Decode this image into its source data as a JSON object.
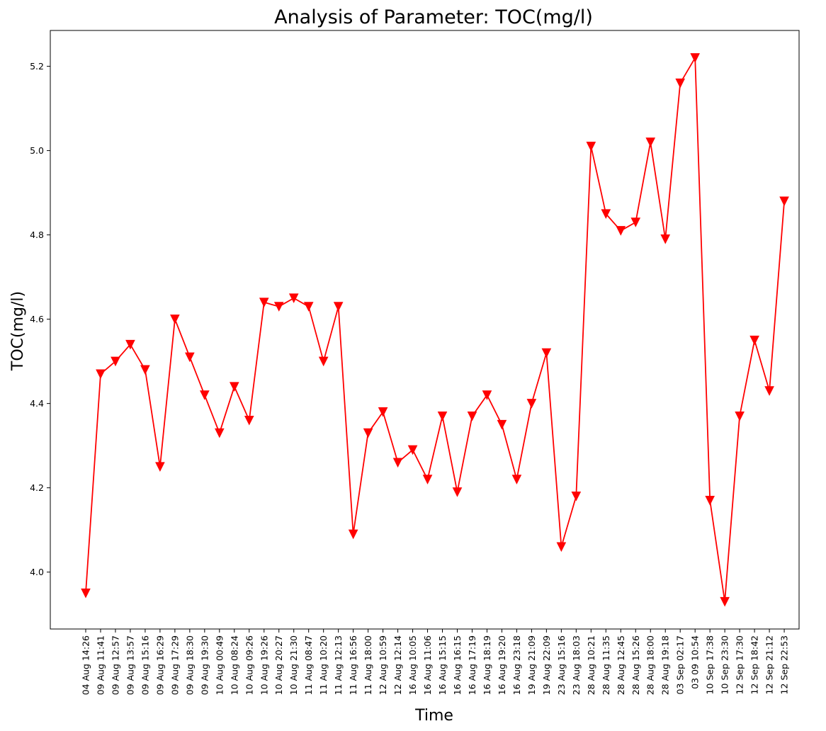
{
  "chart_data": {
    "type": "line",
    "title": "Analysis of Parameter: TOC(mg/l)",
    "xlabel": "Time",
    "ylabel": "TOC(mg/l)",
    "ylim": [
      3.865,
      5.285
    ],
    "yticks": [
      4.0,
      4.2,
      4.4,
      4.6,
      4.8,
      5.0,
      5.2
    ],
    "grid": false,
    "legend": "none",
    "categories": [
      "04 Aug 14:26",
      "09 Aug 11:41",
      "09 Aug 12:57",
      "09 Aug 13:57",
      "09 Aug 15:16",
      "09 Aug 16:29",
      "09 Aug 17:29",
      "09 Aug 18:30",
      "09 Aug 19:30",
      "10 Aug 00:49",
      "10 Aug 08:24",
      "10 Aug 09:26",
      "10 Aug 19:26",
      "10 Aug 20:27",
      "10 Aug 21:30",
      "11 Aug 08:47",
      "11 Aug 10:20",
      "11 Aug 12:13",
      "11 Aug 16:56",
      "11 Aug 18:00",
      "12 Aug 10:59",
      "12 Aug 12:14",
      "16 Aug 10:05",
      "16 Aug 11:06",
      "16 Aug 15:15",
      "16 Aug 16:15",
      "16 Aug 17:19",
      "16 Aug 18:19",
      "16 Aug 19:20",
      "16 Aug 23:18",
      "19 Aug 21:09",
      "19 Aug 22:09",
      "23 Aug 15:16",
      "23 Aug 18:03",
      "28 Aug 10:21",
      "28 Aug 11:35",
      "28 Aug 12:45",
      "28 Aug 15:26",
      "28 Aug 18:00",
      "28 Aug 19:18",
      "03 Sep 02:17",
      "03 09 10:54",
      "10 Sep 17:38",
      "10 Sep 23:30",
      "12 Sep 17:30",
      "12 Sep 18:42",
      "12 Sep 21:12",
      "12 Sep 22:53"
    ],
    "series": [
      {
        "color": "#ff0000",
        "marker": "triangle-down",
        "values": [
          3.95,
          4.47,
          4.5,
          4.54,
          4.48,
          4.25,
          4.6,
          4.51,
          4.42,
          4.33,
          4.44,
          4.36,
          4.64,
          4.63,
          4.65,
          4.63,
          4.5,
          4.63,
          4.09,
          4.33,
          4.38,
          4.26,
          4.29,
          4.22,
          4.37,
          4.19,
          4.37,
          4.42,
          4.35,
          4.22,
          4.4,
          4.52,
          4.06,
          4.18,
          5.01,
          4.85,
          4.81,
          4.83,
          5.02,
          4.79,
          5.16,
          5.22,
          4.17,
          3.93,
          4.37,
          4.55,
          4.43,
          4.88
        ]
      }
    ]
  }
}
